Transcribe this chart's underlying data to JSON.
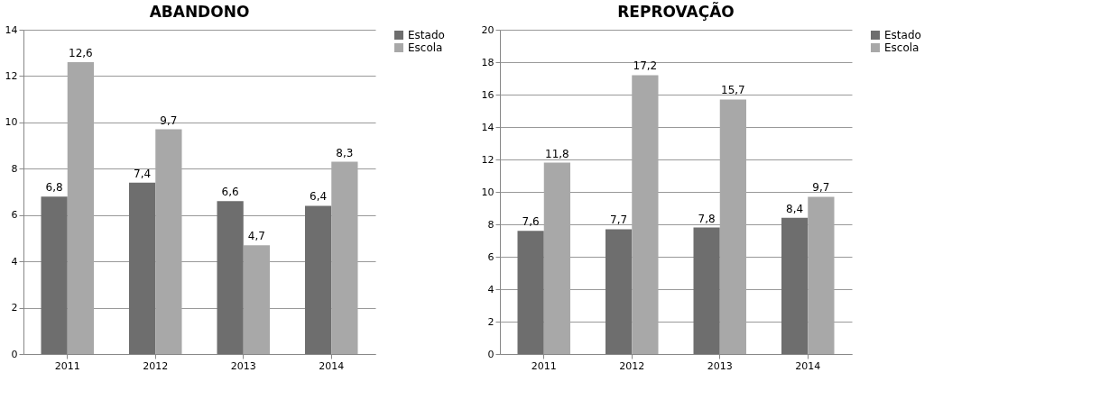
{
  "chart_data": [
    {
      "type": "bar",
      "title": "ABANDONO",
      "categories": [
        "2011",
        "2012",
        "2013",
        "2014"
      ],
      "series": [
        {
          "name": "Estado",
          "color": "#6e6e6e",
          "values": [
            6.8,
            7.4,
            6.6,
            6.4
          ],
          "value_labels": [
            "6,8",
            "7,4",
            "6,6",
            "6,4"
          ]
        },
        {
          "name": "Escola",
          "color": "#a8a8a8",
          "values": [
            12.6,
            9.7,
            4.7,
            8.3
          ],
          "value_labels": [
            "12,6",
            "9,7",
            "4,7",
            "8,3"
          ]
        }
      ],
      "ylim": [
        0,
        14
      ],
      "yticks": [
        0,
        2,
        4,
        6,
        8,
        10,
        12,
        14
      ],
      "grid": "y",
      "legend": "right"
    },
    {
      "type": "bar",
      "title": "REPROVAÇÃO",
      "categories": [
        "2011",
        "2012",
        "2013",
        "2014"
      ],
      "series": [
        {
          "name": "Estado",
          "color": "#6e6e6e",
          "values": [
            7.6,
            7.7,
            7.8,
            8.4
          ],
          "value_labels": [
            "7,6",
            "7,7",
            "7,8",
            "8,4"
          ]
        },
        {
          "name": "Escola",
          "color": "#a8a8a8",
          "values": [
            11.8,
            17.2,
            15.7,
            9.7
          ],
          "value_labels": [
            "11,8",
            "17,2",
            "15,7",
            "9,7"
          ]
        }
      ],
      "ylim": [
        0,
        20
      ],
      "yticks": [
        0,
        2,
        4,
        6,
        8,
        10,
        12,
        14,
        16,
        18,
        20
      ],
      "grid": "y",
      "legend": "right"
    }
  ]
}
